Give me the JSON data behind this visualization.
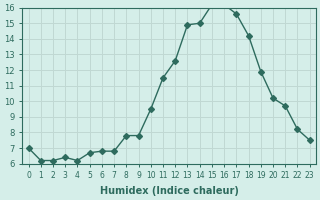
{
  "x": [
    0,
    1,
    2,
    3,
    4,
    5,
    6,
    7,
    8,
    9,
    10,
    11,
    12,
    13,
    14,
    15,
    16,
    17,
    18,
    19,
    20,
    21,
    22,
    23
  ],
  "y": [
    7.0,
    6.2,
    6.2,
    6.4,
    6.2,
    6.7,
    6.8,
    6.8,
    7.8,
    7.8,
    9.5,
    11.5,
    12.6,
    14.9,
    15.0,
    16.2,
    16.2,
    15.6,
    14.2,
    11.9,
    10.2,
    9.7,
    8.2,
    7.5
  ],
  "xlabel": "Humidex (Indice chaleur)",
  "ylim": [
    6,
    16
  ],
  "xlim": [
    -0.5,
    23.5
  ],
  "yticks": [
    6,
    7,
    8,
    9,
    10,
    11,
    12,
    13,
    14,
    15,
    16
  ],
  "xticks": [
    0,
    1,
    2,
    3,
    4,
    5,
    6,
    7,
    8,
    9,
    10,
    11,
    12,
    13,
    14,
    15,
    16,
    17,
    18,
    19,
    20,
    21,
    22,
    23
  ],
  "xtick_labels": [
    "0",
    "1",
    "2",
    "3",
    "4",
    "5",
    "6",
    "7",
    "8",
    "9",
    "10",
    "11",
    "12",
    "13",
    "14",
    "15",
    "16",
    "17",
    "18",
    "19",
    "20",
    "21",
    "22",
    "23"
  ],
  "line_color": "#2e6b5e",
  "marker": "D",
  "marker_size": 3,
  "bg_color": "#d5eee9",
  "grid_color": "#c0d8d3",
  "tick_color": "#2e6b5e",
  "label_color": "#2e6b5e"
}
